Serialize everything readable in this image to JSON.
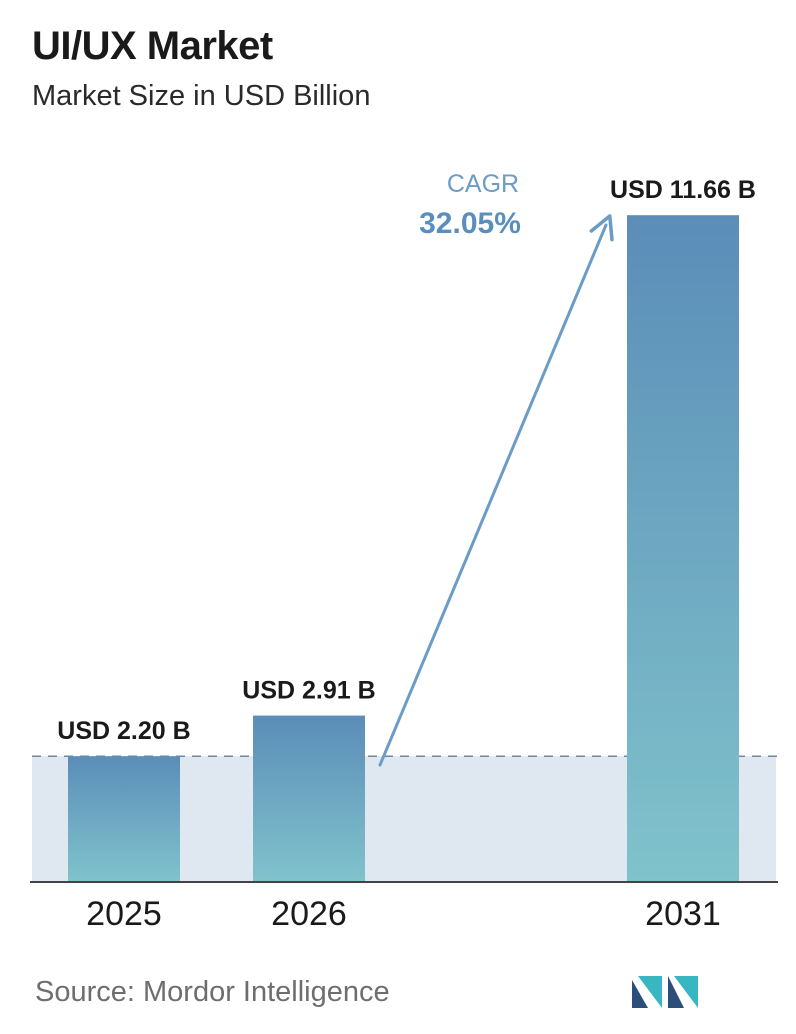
{
  "header": {
    "title": "UI/UX Market",
    "subtitle": "Market Size in USD Billion"
  },
  "chart_data": {
    "type": "bar",
    "title": "UI/UX Market",
    "subtitle": "Market Size in USD Billion",
    "categories": [
      "2025",
      "2026",
      "2031"
    ],
    "values": [
      2.2,
      2.91,
      11.66
    ],
    "data_labels": [
      "USD 2.20 B",
      "USD 2.91 B",
      "USD 11.66 B"
    ],
    "ylim": [
      0,
      12.8
    ],
    "xlabel": "",
    "ylabel": "",
    "grid": false,
    "annotation": {
      "label": "CAGR",
      "value": "32.05%"
    },
    "colors": {
      "bar_top": "#5b8db8",
      "bar_bottom": "#80c3cb",
      "band": "#dfe8f0",
      "axis": "#444444",
      "annotation": "#6b9cc6",
      "annotation_value": "#5a8fbd"
    }
  },
  "footer": {
    "source": "Source:  Mordor Intelligence"
  },
  "logo": {
    "icon": "mordor-intelligence-logo-icon",
    "colors": [
      "#2b4f7a",
      "#38b7c2"
    ]
  }
}
